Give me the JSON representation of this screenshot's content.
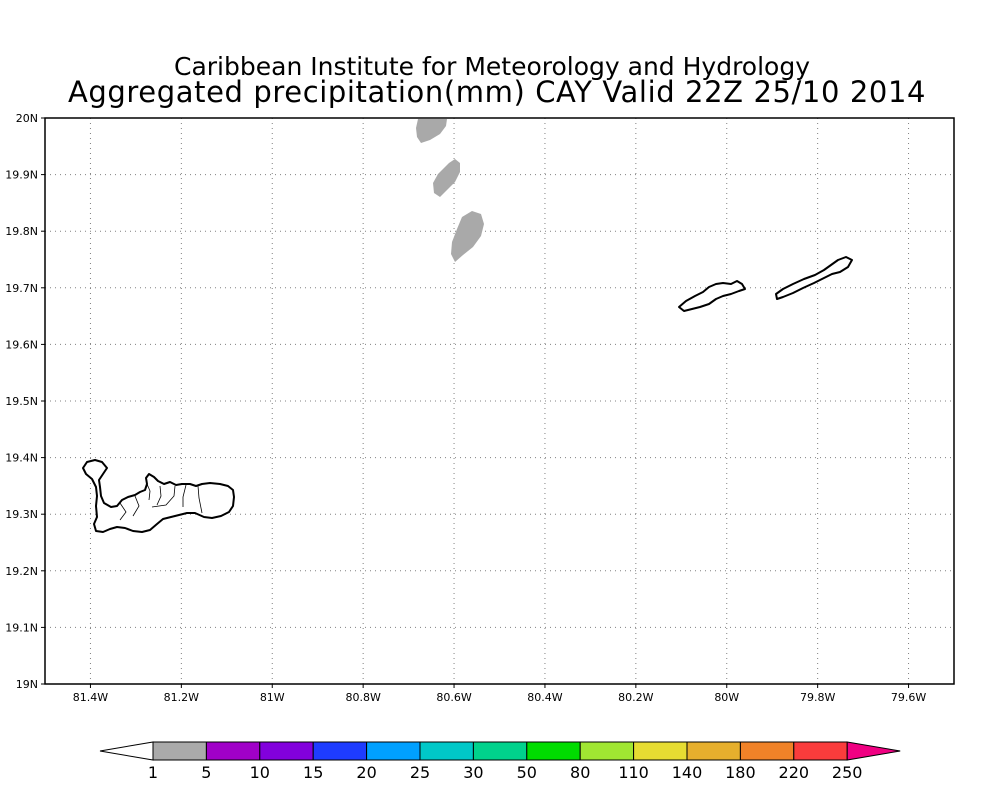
{
  "title": {
    "line1": "Caribbean Institute for Meteorology and Hydrology",
    "line2": "Aggregated precipitation(mm) CAY Valid 22Z 25/10 2014"
  },
  "map": {
    "lon_range": [
      -81.5,
      -79.5
    ],
    "lat_range": [
      19.0,
      20.0
    ],
    "grid": true,
    "lon_ticks": [
      {
        "value": -81.4,
        "label": "81.4W"
      },
      {
        "value": -81.2,
        "label": "81.2W"
      },
      {
        "value": -81.0,
        "label": "81W"
      },
      {
        "value": -80.8,
        "label": "80.8W"
      },
      {
        "value": -80.6,
        "label": "80.6W"
      },
      {
        "value": -80.4,
        "label": "80.4W"
      },
      {
        "value": -80.2,
        "label": "80.2W"
      },
      {
        "value": -80.0,
        "label": "80W"
      },
      {
        "value": -79.8,
        "label": "79.8W"
      },
      {
        "value": -79.6,
        "label": "79.6W"
      }
    ],
    "lat_ticks": [
      {
        "value": 19.0,
        "label": "19N"
      },
      {
        "value": 19.1,
        "label": "19.1N"
      },
      {
        "value": 19.2,
        "label": "19.2N"
      },
      {
        "value": 19.3,
        "label": "19.3N"
      },
      {
        "value": 19.4,
        "label": "19.4N"
      },
      {
        "value": 19.5,
        "label": "19.5N"
      },
      {
        "value": 19.6,
        "label": "19.6N"
      },
      {
        "value": 19.7,
        "label": "19.7N"
      },
      {
        "value": 19.8,
        "label": "19.8N"
      },
      {
        "value": 19.9,
        "label": "19.9N"
      },
      {
        "value": 20.0,
        "label": "20N"
      }
    ],
    "precip_areas": [
      {
        "name": "precip-area-north",
        "category": "1-5"
      },
      {
        "name": "precip-area-middle",
        "category": "1-5"
      },
      {
        "name": "precip-area-south",
        "category": "1-5"
      }
    ],
    "islands": [
      "grand-cayman",
      "little-cayman",
      "cayman-brac"
    ]
  },
  "colorbar": {
    "labels": [
      "1",
      "5",
      "10",
      "15",
      "20",
      "25",
      "30",
      "50",
      "80",
      "110",
      "140",
      "180",
      "220",
      "250"
    ],
    "colors": [
      "#aaaaaa",
      "#a000c8",
      "#8200dc",
      "#1e3cff",
      "#00a0ff",
      "#00c8c8",
      "#00d28c",
      "#00dc00",
      "#a0e632",
      "#e6dc32",
      "#e6af2d",
      "#f08228",
      "#fa3c3c",
      "#f00082"
    ],
    "under_color": "#ffffff"
  }
}
